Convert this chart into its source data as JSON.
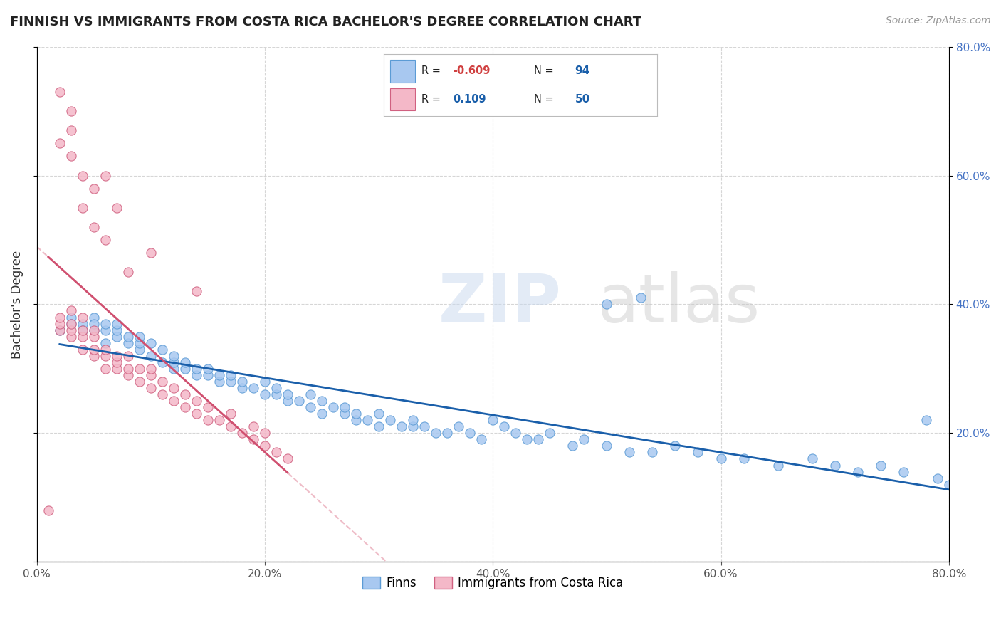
{
  "title": "FINNISH VS IMMIGRANTS FROM COSTA RICA BACHELOR'S DEGREE CORRELATION CHART",
  "source": "Source: ZipAtlas.com",
  "ylabel": "Bachelor's Degree",
  "xlim": [
    0.0,
    0.8
  ],
  "ylim": [
    0.0,
    0.8
  ],
  "legend_entries": [
    {
      "label": "Finns",
      "color": "#a8c8f0",
      "edge": "#5b9bd5",
      "r": -0.609,
      "n": 94
    },
    {
      "label": "Immigrants from Costa Rica",
      "color": "#f4b8c8",
      "edge": "#d06080",
      "r": 0.109,
      "n": 50
    }
  ],
  "trendline_finns_color": "#1a5faa",
  "trendline_cr_color": "#d05070",
  "trendline_cr_dashed_color": "#e8a0b0",
  "grid_color": "#cccccc",
  "background": "#ffffff",
  "finns_x": [
    0.02,
    0.03,
    0.03,
    0.04,
    0.04,
    0.05,
    0.05,
    0.05,
    0.06,
    0.06,
    0.06,
    0.07,
    0.07,
    0.07,
    0.08,
    0.08,
    0.09,
    0.09,
    0.09,
    0.1,
    0.1,
    0.11,
    0.11,
    0.12,
    0.12,
    0.12,
    0.13,
    0.13,
    0.14,
    0.14,
    0.15,
    0.15,
    0.16,
    0.16,
    0.17,
    0.17,
    0.18,
    0.18,
    0.19,
    0.2,
    0.2,
    0.21,
    0.21,
    0.22,
    0.22,
    0.23,
    0.24,
    0.24,
    0.25,
    0.25,
    0.26,
    0.27,
    0.27,
    0.28,
    0.28,
    0.29,
    0.3,
    0.3,
    0.31,
    0.32,
    0.33,
    0.33,
    0.34,
    0.35,
    0.36,
    0.37,
    0.38,
    0.39,
    0.4,
    0.41,
    0.42,
    0.43,
    0.44,
    0.45,
    0.47,
    0.48,
    0.5,
    0.52,
    0.54,
    0.56,
    0.58,
    0.6,
    0.62,
    0.65,
    0.68,
    0.7,
    0.72,
    0.74,
    0.76,
    0.78,
    0.79,
    0.8,
    0.5,
    0.53
  ],
  "finns_y": [
    0.36,
    0.38,
    0.37,
    0.37,
    0.36,
    0.38,
    0.36,
    0.37,
    0.34,
    0.36,
    0.37,
    0.35,
    0.36,
    0.37,
    0.34,
    0.35,
    0.33,
    0.34,
    0.35,
    0.32,
    0.34,
    0.31,
    0.33,
    0.3,
    0.31,
    0.32,
    0.3,
    0.31,
    0.29,
    0.3,
    0.29,
    0.3,
    0.28,
    0.29,
    0.28,
    0.29,
    0.27,
    0.28,
    0.27,
    0.26,
    0.28,
    0.26,
    0.27,
    0.25,
    0.26,
    0.25,
    0.24,
    0.26,
    0.23,
    0.25,
    0.24,
    0.23,
    0.24,
    0.22,
    0.23,
    0.22,
    0.21,
    0.23,
    0.22,
    0.21,
    0.21,
    0.22,
    0.21,
    0.2,
    0.2,
    0.21,
    0.2,
    0.19,
    0.22,
    0.21,
    0.2,
    0.19,
    0.19,
    0.2,
    0.18,
    0.19,
    0.18,
    0.17,
    0.17,
    0.18,
    0.17,
    0.16,
    0.16,
    0.15,
    0.16,
    0.15,
    0.14,
    0.15,
    0.14,
    0.22,
    0.13,
    0.12,
    0.4,
    0.41
  ],
  "cr_x": [
    0.01,
    0.02,
    0.02,
    0.02,
    0.03,
    0.03,
    0.03,
    0.03,
    0.04,
    0.04,
    0.04,
    0.04,
    0.05,
    0.05,
    0.05,
    0.05,
    0.06,
    0.06,
    0.06,
    0.07,
    0.07,
    0.07,
    0.08,
    0.08,
    0.08,
    0.09,
    0.09,
    0.1,
    0.1,
    0.1,
    0.11,
    0.11,
    0.12,
    0.12,
    0.13,
    0.13,
    0.14,
    0.14,
    0.15,
    0.15,
    0.16,
    0.17,
    0.17,
    0.18,
    0.19,
    0.19,
    0.2,
    0.2,
    0.21,
    0.22
  ],
  "cr_y": [
    0.08,
    0.36,
    0.37,
    0.38,
    0.35,
    0.36,
    0.37,
    0.39,
    0.33,
    0.35,
    0.36,
    0.38,
    0.32,
    0.33,
    0.35,
    0.36,
    0.3,
    0.32,
    0.33,
    0.3,
    0.31,
    0.32,
    0.29,
    0.3,
    0.32,
    0.28,
    0.3,
    0.27,
    0.29,
    0.3,
    0.26,
    0.28,
    0.25,
    0.27,
    0.24,
    0.26,
    0.23,
    0.25,
    0.22,
    0.24,
    0.22,
    0.21,
    0.23,
    0.2,
    0.19,
    0.21,
    0.18,
    0.2,
    0.17,
    0.16
  ],
  "cr_outliers_x": [
    0.02,
    0.02,
    0.03,
    0.03,
    0.03,
    0.04,
    0.04,
    0.05,
    0.05,
    0.06,
    0.06,
    0.07,
    0.08,
    0.1,
    0.14
  ],
  "cr_outliers_y": [
    0.73,
    0.65,
    0.7,
    0.63,
    0.67,
    0.6,
    0.55,
    0.58,
    0.52,
    0.6,
    0.5,
    0.55,
    0.45,
    0.48,
    0.42
  ]
}
